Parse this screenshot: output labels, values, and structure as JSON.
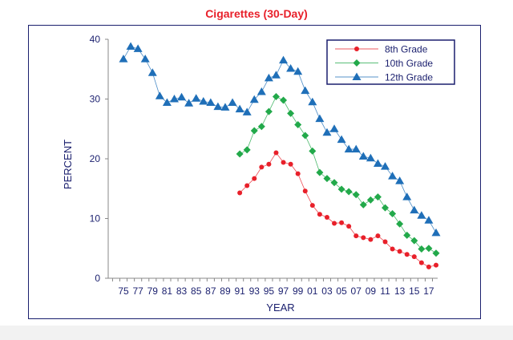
{
  "chart_data": {
    "type": "line",
    "title": "Cigarettes (30-Day)",
    "xlabel": "YEAR",
    "ylabel": "PERCENT",
    "ylim": [
      0,
      40
    ],
    "yticks": [
      "0",
      "10",
      "20",
      "30",
      "40"
    ],
    "xtick_labels": [
      "75",
      "77",
      "79",
      "81",
      "83",
      "85",
      "87",
      "89",
      "91",
      "93",
      "95",
      "97",
      "99",
      "01",
      "03",
      "05",
      "07",
      "09",
      "11",
      "13",
      "15",
      "17"
    ],
    "legend_position": "top-right",
    "grid": false,
    "series": [
      {
        "name": "8th Grade",
        "color": "#e8202a",
        "marker": "circle",
        "x": [
          1991,
          1992,
          1993,
          1994,
          1995,
          1996,
          1997,
          1998,
          1999,
          2000,
          2001,
          2002,
          2003,
          2004,
          2005,
          2006,
          2007,
          2008,
          2009,
          2010,
          2011,
          2012,
          2013,
          2014,
          2015,
          2016,
          2017,
          2018
        ],
        "values": [
          14.3,
          15.5,
          16.7,
          18.6,
          19.1,
          21.0,
          19.4,
          19.1,
          17.5,
          14.6,
          12.2,
          10.7,
          10.2,
          9.2,
          9.3,
          8.7,
          7.1,
          6.8,
          6.5,
          7.1,
          6.1,
          4.9,
          4.5,
          4.0,
          3.6,
          2.6,
          1.9,
          2.2
        ]
      },
      {
        "name": "10th Grade",
        "color": "#22a94a",
        "marker": "diamond",
        "x": [
          1991,
          1992,
          1993,
          1994,
          1995,
          1996,
          1997,
          1998,
          1999,
          2000,
          2001,
          2002,
          2003,
          2004,
          2005,
          2006,
          2007,
          2008,
          2009,
          2010,
          2011,
          2012,
          2013,
          2014,
          2015,
          2016,
          2017,
          2018
        ],
        "values": [
          20.8,
          21.5,
          24.7,
          25.4,
          27.9,
          30.4,
          29.8,
          27.6,
          25.7,
          23.9,
          21.3,
          17.7,
          16.7,
          16.0,
          14.9,
          14.5,
          14.0,
          12.3,
          13.1,
          13.6,
          11.8,
          10.8,
          9.1,
          7.2,
          6.3,
          4.9,
          5.0,
          4.2
        ]
      },
      {
        "name": "12th Grade",
        "color": "#1f6fb8",
        "marker": "triangle",
        "x": [
          1975,
          1976,
          1977,
          1978,
          1979,
          1980,
          1981,
          1982,
          1983,
          1984,
          1985,
          1986,
          1987,
          1988,
          1989,
          1990,
          1991,
          1992,
          1993,
          1994,
          1995,
          1996,
          1997,
          1998,
          1999,
          2000,
          2001,
          2002,
          2003,
          2004,
          2005,
          2006,
          2007,
          2008,
          2009,
          2010,
          2011,
          2012,
          2013,
          2014,
          2015,
          2016,
          2017,
          2018
        ],
        "values": [
          36.7,
          38.8,
          38.4,
          36.7,
          34.4,
          30.5,
          29.4,
          30.0,
          30.3,
          29.3,
          30.1,
          29.6,
          29.4,
          28.7,
          28.6,
          29.4,
          28.3,
          27.8,
          29.9,
          31.2,
          33.5,
          34.0,
          36.5,
          35.1,
          34.6,
          31.4,
          29.5,
          26.7,
          24.4,
          25.0,
          23.2,
          21.6,
          21.6,
          20.4,
          20.1,
          19.2,
          18.7,
          17.1,
          16.3,
          13.6,
          11.4,
          10.5,
          9.7,
          7.6
        ]
      }
    ]
  }
}
